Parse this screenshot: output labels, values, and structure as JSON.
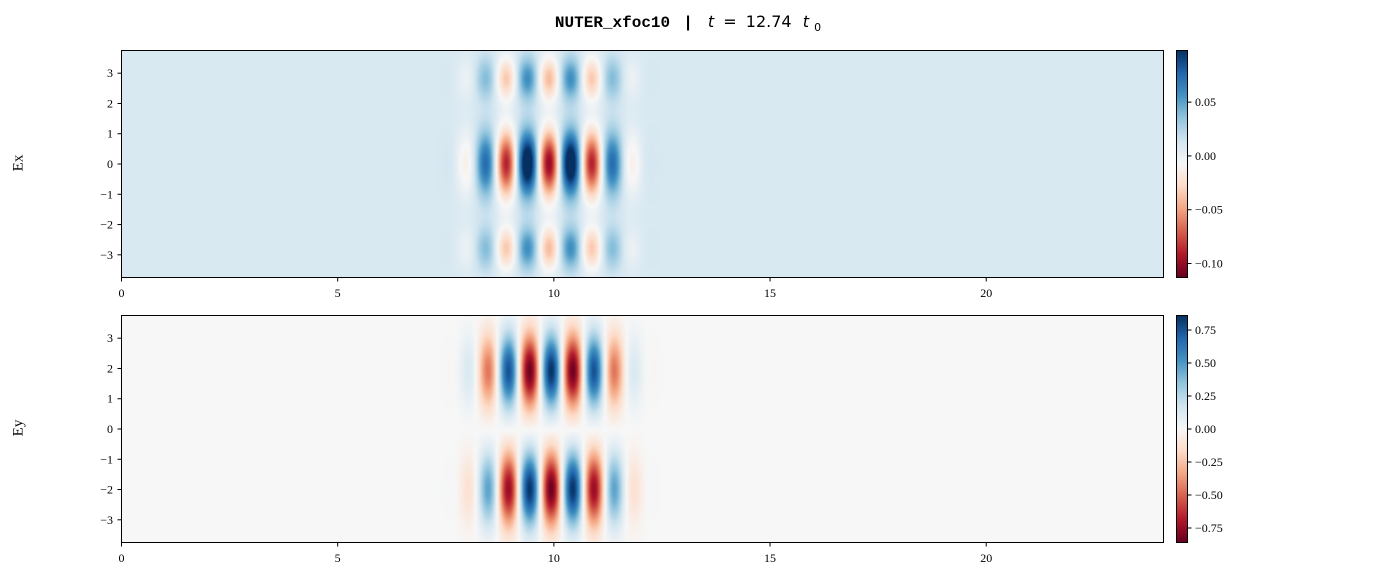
{
  "title": {
    "run_name": "NUTER_xfoc10",
    "separator": "|",
    "time_var": "t",
    "equals": "=",
    "time_value": "12.74",
    "unit_var": "t",
    "unit_sub": "0"
  },
  "colors": {
    "cmap": [
      "#67001f",
      "#b2182b",
      "#d6604d",
      "#f4a582",
      "#fddbc7",
      "#f7f7f7",
      "#d1e5f0",
      "#92c5de",
      "#4393c3",
      "#2166ac",
      "#053061"
    ]
  },
  "chart_data": [
    {
      "type": "heatmap",
      "ylabel": "Ex",
      "x_range": [
        0,
        24.1
      ],
      "y_range": [
        -3.75,
        3.75
      ],
      "xticks": [
        0,
        5,
        10,
        15,
        20
      ],
      "yticks": [
        3,
        2,
        1,
        0,
        -1,
        -2,
        -3
      ],
      "colorbar": {
        "range": [
          -0.113,
          0.098
        ],
        "ticks": [
          0.05,
          0.0,
          -0.05,
          -0.1
        ],
        "tick_labels": [
          "0.05",
          "0.00",
          "−0.05",
          "−0.10"
        ]
      },
      "background_value": 0.009,
      "pulse": {
        "center_x": 9.9,
        "envelope_sigma_x": 1.3,
        "wavelength": 1.0,
        "peak": -0.11,
        "lobes": [
          {
            "center_y": 0.0,
            "sigma_y": 0.75,
            "amplitude": 1.0
          },
          {
            "center_y": 2.8,
            "sigma_y": 0.5,
            "amplitude": 0.45
          },
          {
            "center_y": -2.8,
            "sigma_y": 0.5,
            "amplitude": 0.45
          }
        ]
      }
    },
    {
      "type": "heatmap",
      "ylabel": "Ey",
      "x_range": [
        0,
        24.1
      ],
      "y_range": [
        -3.75,
        3.75
      ],
      "xticks": [
        0,
        5,
        10,
        15,
        20
      ],
      "yticks": [
        3,
        2,
        1,
        0,
        -1,
        -2,
        -3
      ],
      "colorbar": {
        "range": [
          -0.86,
          0.86
        ],
        "ticks": [
          0.75,
          0.5,
          0.25,
          0.0,
          -0.25,
          -0.5,
          -0.75
        ],
        "tick_labels": [
          "0.75",
          "0.50",
          "0.25",
          "0.00",
          "−0.25",
          "−0.50",
          "−0.75"
        ]
      },
      "background_value": 0.0,
      "pulse": {
        "center_x": 9.95,
        "envelope_sigma_x": 1.25,
        "wavelength": 1.0,
        "peak": 0.85,
        "lobes": [
          {
            "center_y": 1.9,
            "sigma_y": 0.85,
            "amplitude": 1.0
          },
          {
            "center_y": -2.0,
            "sigma_y": 0.85,
            "amplitude": -1.0
          }
        ]
      }
    }
  ]
}
